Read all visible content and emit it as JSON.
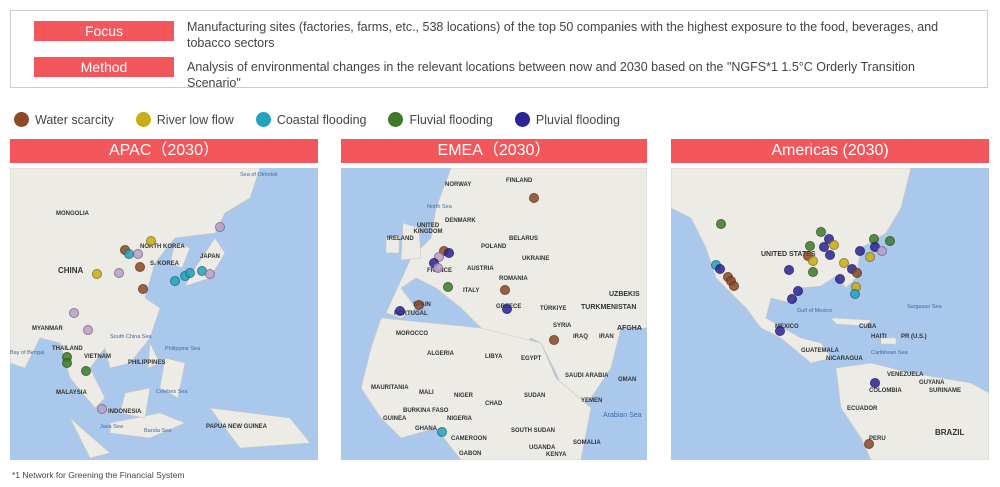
{
  "info": {
    "focus_label": "Focus",
    "focus_text": "Manufacturing sites (factories, farms, etc., 538 locations) of the top 50 companies with the highest exposure to the food, beverages, and tobacco sectors",
    "method_label": "Method",
    "method_text": "Analysis of environmental changes in the relevant locations between now and 2030 based on the \"NGFS*1 1.5°C Orderly Transition Scenario\""
  },
  "legend": [
    {
      "label": "Water scarcity",
      "color": "#8b4a26"
    },
    {
      "label": "River low flow",
      "color": "#c9ac18"
    },
    {
      "label": "Coastal flooding",
      "color": "#23a3be"
    },
    {
      "label": "Fluvial flooding",
      "color": "#3e7a2a"
    },
    {
      "label": "Pluvial flooding",
      "color": "#2b2396"
    }
  ],
  "maps": {
    "apac": {
      "title": "APAC（2030）",
      "labels": [
        "MONGOLIA",
        "NORTH KOREA",
        "S. KOREA",
        "JAPAN",
        "CHINA",
        "MYANMAR",
        "THAILAND",
        "VIETNAM",
        "PHILIPPINES",
        "MALAYSIA",
        "INDONESIA",
        "PAPUA NEW GUINEA"
      ],
      "seas": [
        "Sea of Okhotsk",
        "South China Sea",
        "Philippine Sea",
        "Celebes Sea",
        "Java Sea",
        "Banda Sea",
        "Bay of Bengal"
      ]
    },
    "emea": {
      "title": "EMEA（2030）",
      "labels": [
        "NORWAY",
        "FINLAND",
        "UNITED KINGDOM",
        "DENMARK",
        "IRELAND",
        "BELARUS",
        "POLAND",
        "UKRAINE",
        "FRANCE",
        "AUSTRIA",
        "ROMANIA",
        "ITALY",
        "SPAIN",
        "PORTUGAL",
        "TÜRKIYE",
        "GREECE",
        "SYRIA",
        "IRAQ",
        "IRAN",
        "MOROCCO",
        "ALGERIA",
        "LIBYA",
        "EGYPT",
        "SAUDI ARABIA",
        "OMAN",
        "MAURITANIA",
        "MALI",
        "NIGER",
        "CHAD",
        "SUDAN",
        "YEMEN",
        "BURKINA FASO",
        "NIGERIA",
        "GHANA",
        "CAMEROON",
        "SOUTH SUDAN",
        "GUINEA",
        "SOMALIA",
        "UGANDA",
        "KENYA",
        "GABON",
        "UZBEKIS",
        "TURKMENISTAN",
        "AFGHA"
      ],
      "seas": [
        "North Sea",
        "Arabian Sea"
      ]
    },
    "americas": {
      "title": "Americas (2030)",
      "labels": [
        "UNITED STATES",
        "MEXICO",
        "CUBA",
        "HAITI",
        "PR (U.S.)",
        "GUATEMALA",
        "NICARAGUA",
        "VENEZUELA",
        "GUYANA",
        "SURINAME",
        "COLOMBIA",
        "ECUADOR",
        "PERU",
        "BRAZIL"
      ],
      "seas": [
        "Gulf of Mexico",
        "Sargasso Sea",
        "Caribbean Sea"
      ]
    }
  },
  "footnote": "*1 Network for Greening the Financial System"
}
